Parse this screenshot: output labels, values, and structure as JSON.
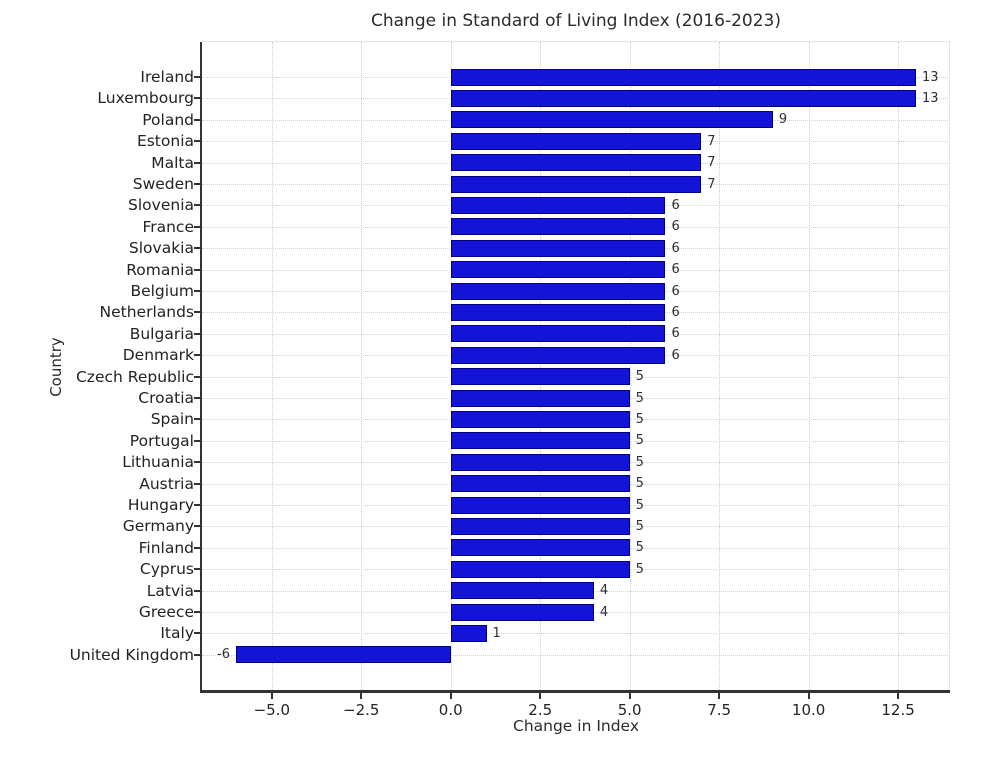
{
  "chart_data": {
    "type": "bar",
    "orientation": "horizontal",
    "title": "Change in Standard of Living Index (2016-2023)",
    "xlabel": "Change in Index",
    "ylabel": "Country",
    "categories": [
      "Ireland",
      "Luxembourg",
      "Poland",
      "Estonia",
      "Malta",
      "Sweden",
      "Slovenia",
      "France",
      "Slovakia",
      "Romania",
      "Belgium",
      "Netherlands",
      "Bulgaria",
      "Denmark",
      "Czech Republic",
      "Croatia",
      "Spain",
      "Portugal",
      "Lithuania",
      "Austria",
      "Hungary",
      "Germany",
      "Finland",
      "Cyprus",
      "Latvia",
      "Greece",
      "Italy",
      "United Kingdom"
    ],
    "values": [
      13,
      13,
      9,
      7,
      7,
      7,
      6,
      6,
      6,
      6,
      6,
      6,
      6,
      6,
      5,
      5,
      5,
      5,
      5,
      5,
      5,
      5,
      5,
      5,
      4,
      4,
      1,
      -6
    ],
    "value_labels": [
      "13",
      "13",
      "9",
      "7",
      "7",
      "7",
      "6",
      "6",
      "6",
      "6",
      "6",
      "6",
      "6",
      "6",
      "5",
      "5",
      "5",
      "5",
      "5",
      "5",
      "5",
      "5",
      "5",
      "5",
      "4",
      "4",
      "1",
      "-6"
    ],
    "xtick_labels": [
      "−5.0",
      "−2.5",
      "0.0",
      "2.5",
      "5.0",
      "7.5",
      "10.0",
      "12.5"
    ],
    "xtick_values": [
      -5,
      -2.5,
      0,
      2.5,
      5,
      7.5,
      10,
      12.5
    ],
    "xlim": [
      -6.95,
      13.95
    ],
    "grid": true,
    "legend_position": "none",
    "colors": {
      "bar_fill": "#1414d8",
      "bar_edge": "#000080",
      "grid": "#cccccc",
      "axis": "#333333",
      "text": "#2b2b2b",
      "background": "#ffffff"
    }
  }
}
